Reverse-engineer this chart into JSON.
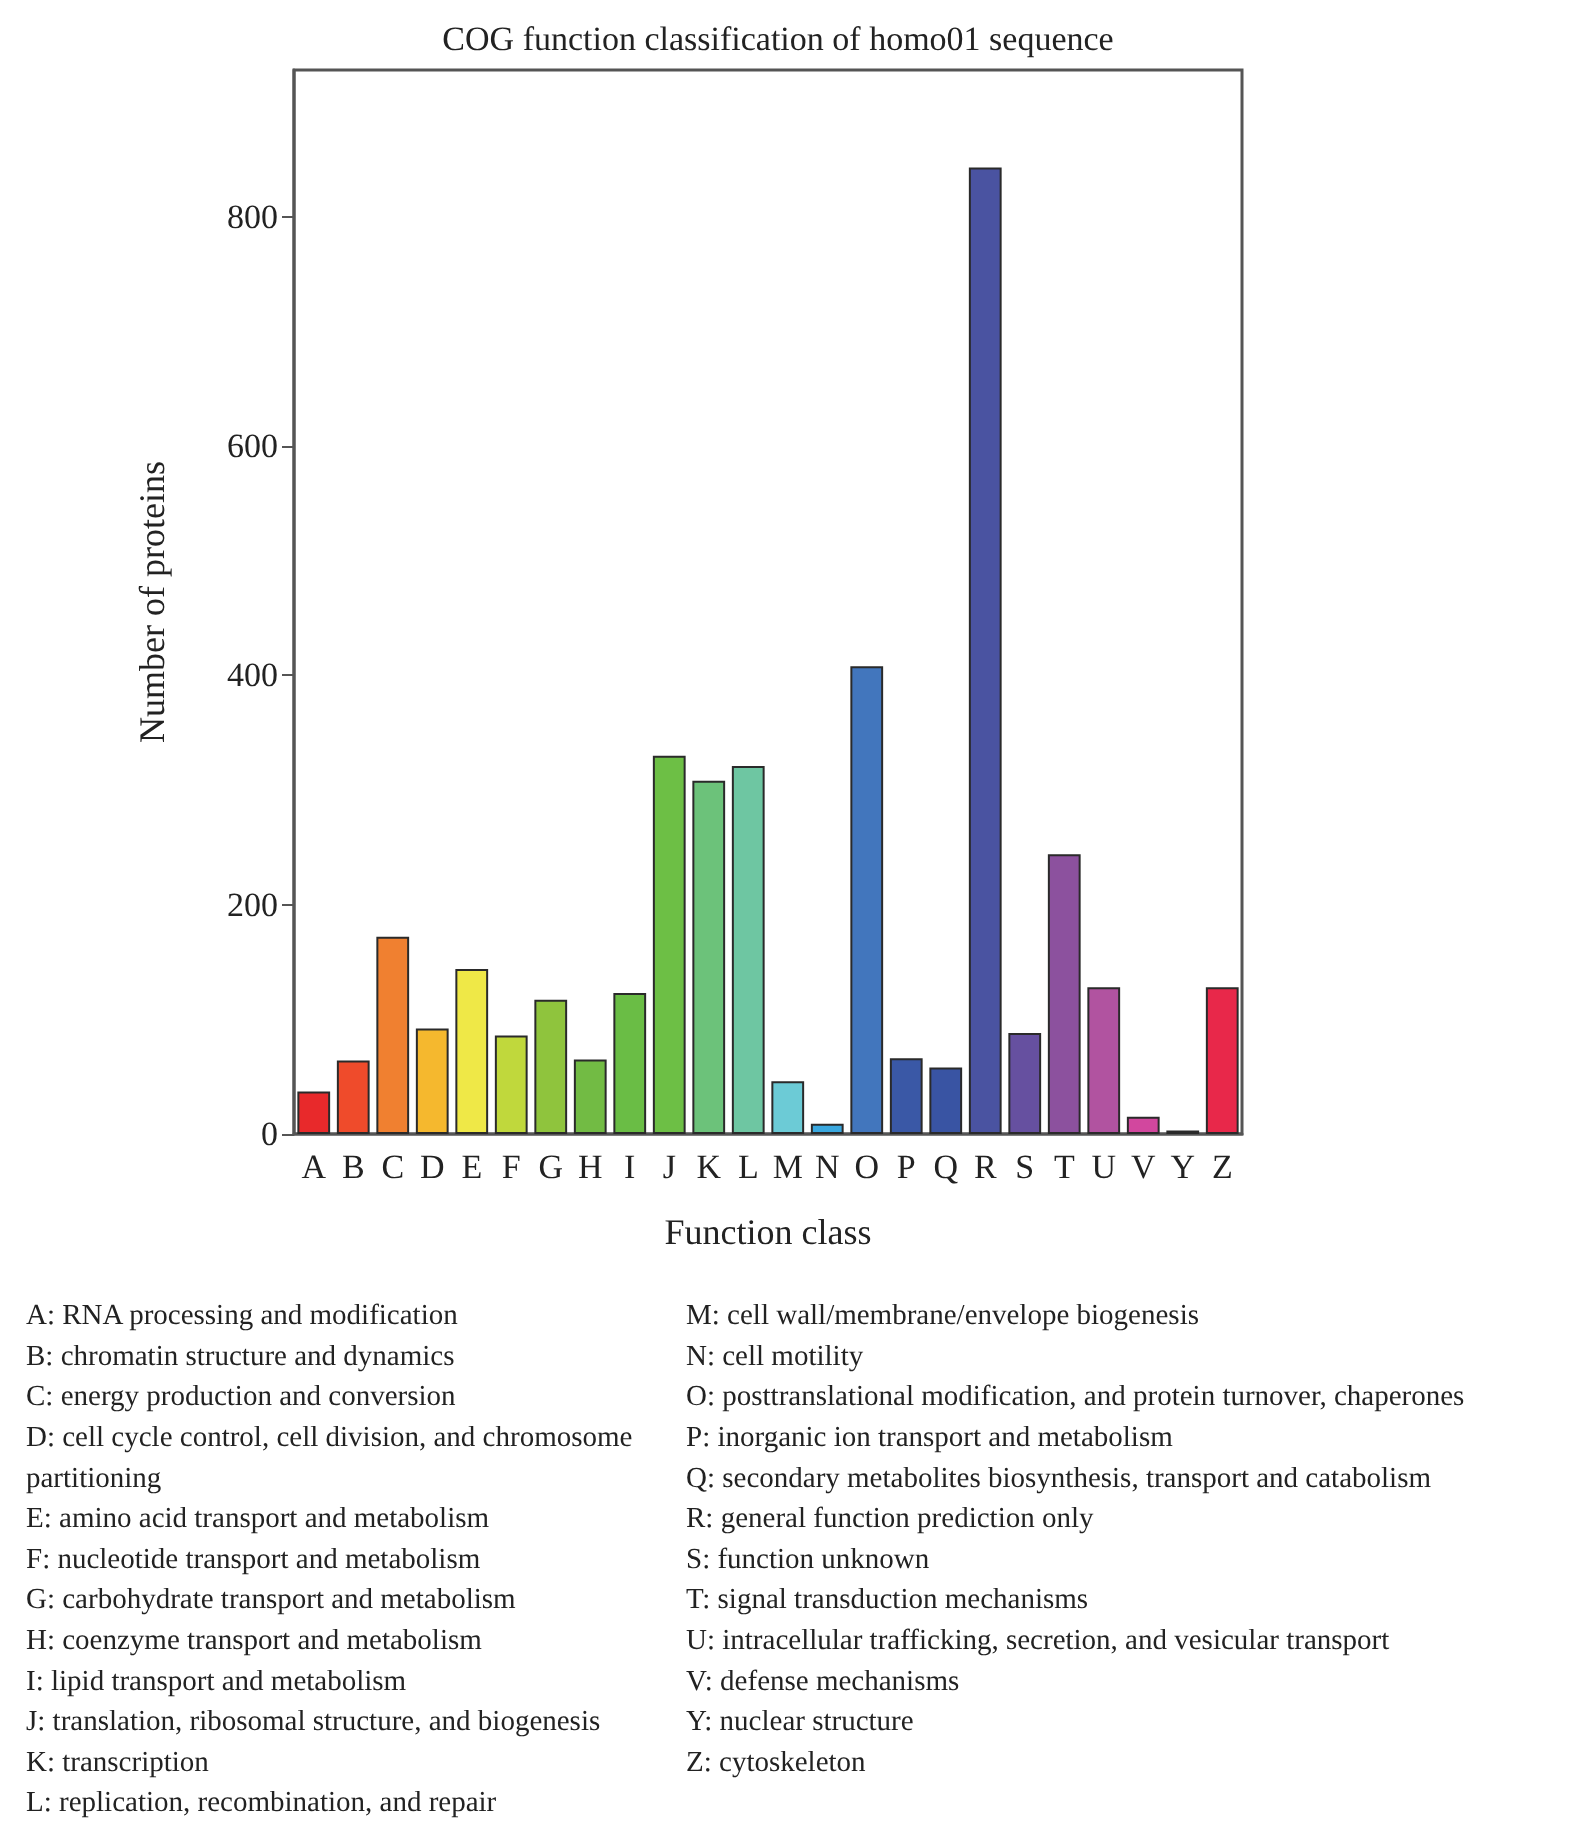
{
  "chart_data": {
    "type": "bar",
    "title": "COG function classification of homo01 sequence",
    "xlabel": "Function class",
    "ylabel": "Number of proteins",
    "categories": [
      "A",
      "B",
      "C",
      "D",
      "E",
      "F",
      "G",
      "H",
      "I",
      "J",
      "K",
      "L",
      "M",
      "N",
      "O",
      "P",
      "Q",
      "R",
      "S",
      "T",
      "U",
      "V",
      "Y",
      "Z"
    ],
    "values": [
      37,
      64,
      172,
      92,
      144,
      86,
      117,
      65,
      123,
      330,
      308,
      321,
      46,
      9,
      408,
      66,
      58,
      843,
      88,
      244,
      128,
      15,
      3,
      128
    ],
    "colors": [
      "#e8292b",
      "#ef4b2b",
      "#f08030",
      "#f5b82e",
      "#efe847",
      "#c0d83c",
      "#8fc43d",
      "#72bb44",
      "#6abd45",
      "#6dbf45",
      "#6cc27a",
      "#6ec6a2",
      "#6ccbd6",
      "#3aa8df",
      "#4276bd",
      "#3a58a6",
      "#3954a3",
      "#4a53a1",
      "#6650a0",
      "#8c519e",
      "#b153a0",
      "#d2479e",
      "#d92a6a",
      "#e8284a"
    ],
    "ylim": [
      0,
      928
    ],
    "yticks": [
      0,
      200,
      400,
      600,
      800
    ],
    "grid": false,
    "annotations": [
      "A: RNA processing and modification",
      "B: chromatin structure and dynamics",
      "C: energy production and conversion",
      "D: cell cycle control, cell division, and chromosome partitioning",
      "E: amino acid transport and metabolism",
      "F: nucleotide transport and metabolism",
      "G: carbohydrate transport and metabolism",
      "H: coenzyme transport and metabolism",
      "I: lipid transport and metabolism",
      "J: translation, ribosomal structure, and biogenesis",
      "K: transcription",
      "L: replication, recombination, and repair",
      "M: cell wall/membrane/envelope biogenesis",
      "N: cell motility",
      "O: posttranslational modification, and protein turnover, chaperones",
      "P: inorganic ion transport and metabolism",
      "Q: secondary metabolites biosynthesis, transport and catabolism",
      "R: general function prediction only",
      "S: function unknown",
      "T: signal transduction mechanisms",
      "U: intracellular trafficking, secretion, and vesicular transport",
      "V: defense mechanisms",
      "Y: nuclear structure",
      "Z: cytoskeleton"
    ]
  }
}
